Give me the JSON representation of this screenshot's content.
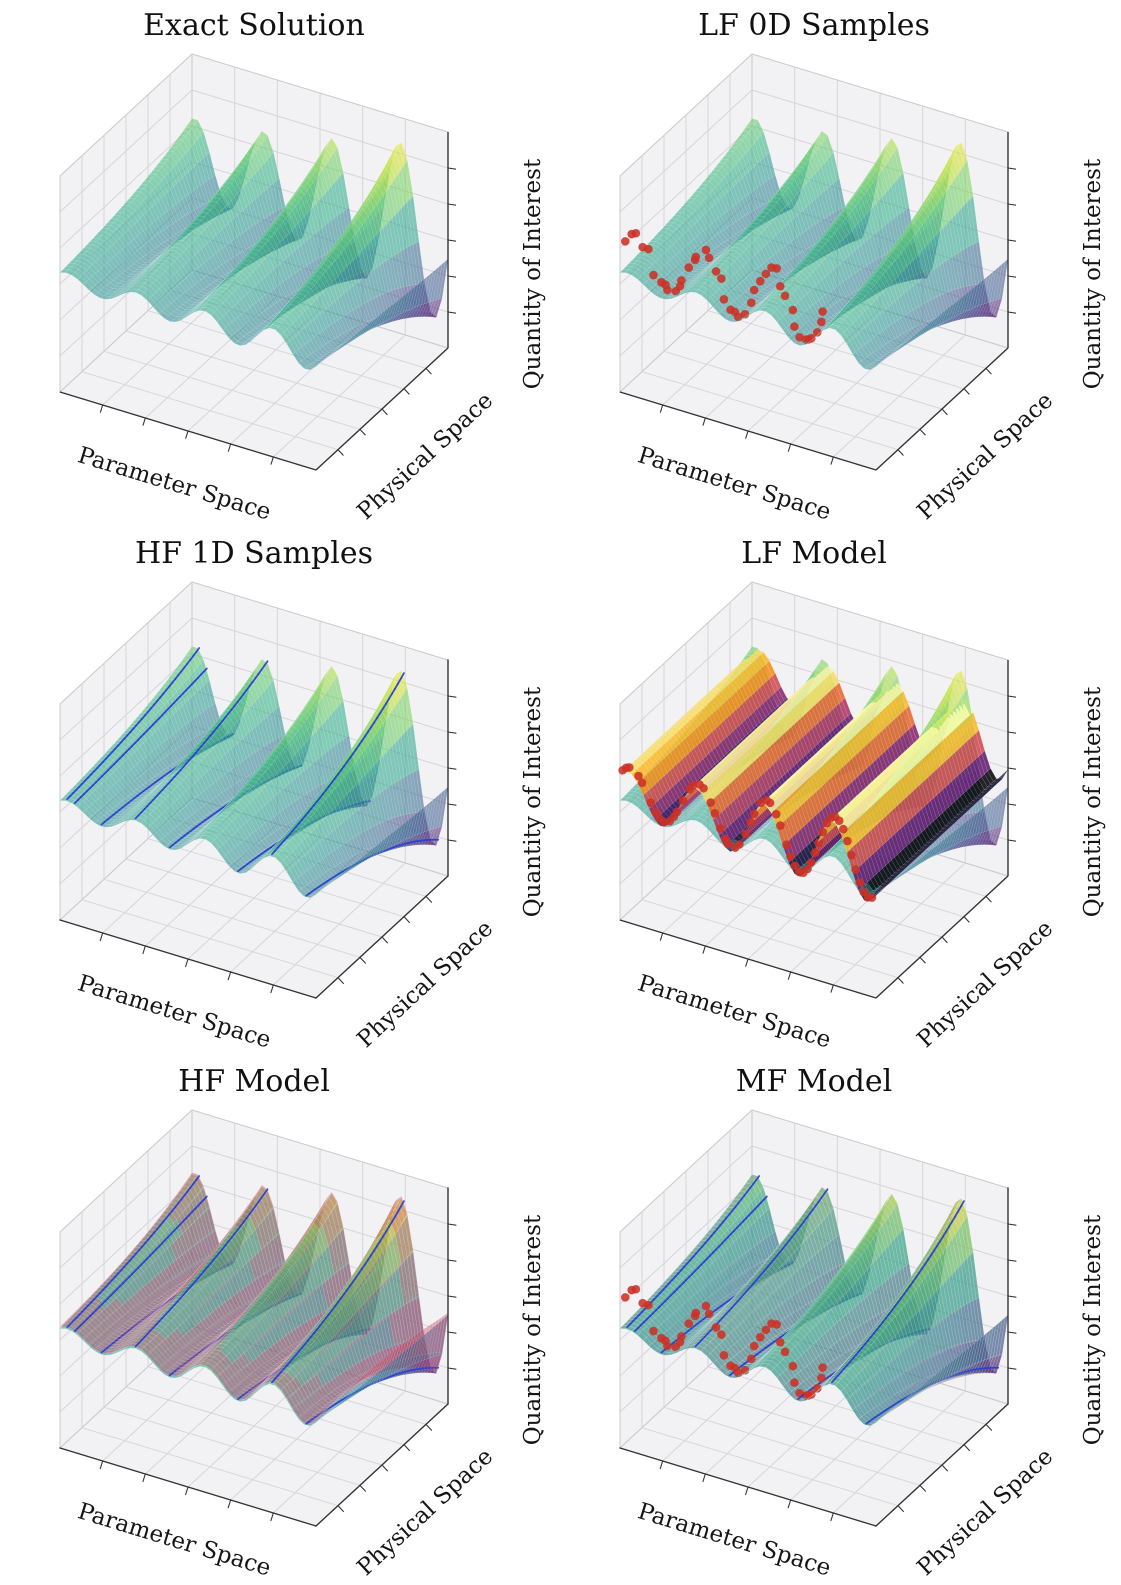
{
  "chart_data": {
    "type": "3d-surface",
    "grid": {
      "rows": 3,
      "cols": 2
    },
    "xlabel": "Parameter Space",
    "ylabel": "Physical Space",
    "zlabel": "Quantity of Interest",
    "x_range": [
      0,
      1
    ],
    "y_range": [
      0,
      1
    ],
    "z_range": [
      -2.9,
      2.6
    ],
    "ticks_per_axis": 5,
    "tick_labels_visible": false,
    "subplots": [
      {
        "title": "Exact Solution",
        "layers": [
          "exact_surface"
        ]
      },
      {
        "title": "LF 0D Samples",
        "layers": [
          "exact_surface",
          "lf_point_samples"
        ]
      },
      {
        "title": "HF 1D Samples",
        "layers": [
          "exact_surface",
          "hf_line_samples"
        ]
      },
      {
        "title": "LF Model",
        "layers": [
          "exact_surface",
          "lf_surface",
          "lf_edge_points"
        ]
      },
      {
        "title": "HF Model",
        "layers": [
          "exact_surface",
          "hf_surface",
          "hf_line_samples"
        ]
      },
      {
        "title": "MF Model",
        "layers": [
          "exact_surface",
          "mf_surface",
          "hf_line_samples",
          "lf_point_samples"
        ]
      }
    ],
    "exact_surface": {
      "formula": "z = sin(2pi*f*p + phi + k*s) * (a0 + a1*p^e) * exp(r*(s-m)) * c",
      "f": 3.75,
      "phi": 0.9,
      "k": 0.4,
      "a0": 0.42,
      "a1": 0.58,
      "e": 1.5,
      "r": 1.7,
      "m": 0.55,
      "c": 1.1,
      "colormap": "viridis",
      "alpha": 0.55
    },
    "lf_surface": {
      "formula": "z = sin(2pi*f*p + phi) * (b0 + b1*p) * c + d  (constant along physical space)",
      "f": 3.75,
      "phi": 0.9,
      "b0": 0.5,
      "b1": 0.4,
      "c": 1.05,
      "d": 0.4,
      "colormap": "inferno",
      "alpha": 0.85,
      "bands": 13
    },
    "hf_surface": {
      "formula": "z = exact + a*sin(pi*s)*cos(2pi*f*p + phi)*(0.35 + 0.65*p) + o",
      "a": 0.22,
      "f": 3.75,
      "phi": 2.0,
      "o": 0.05,
      "color": "#c23a55",
      "alpha": 0.4
    },
    "mf_surface": {
      "formula": "z = exact + a*sin(pi*s)*cos(2pi*f*p + phi)",
      "a": 0.06,
      "f": 2.5,
      "phi": 1.2,
      "color": "#68707e",
      "alpha": 0.3
    },
    "lf_point_samples": {
      "description": "LF 0D sample points along parameter space at fixed physical location",
      "s0": 0.04,
      "color": "#cc3125",
      "p": [
        0.0,
        0.014,
        0.026,
        0.062,
        0.076,
        0.11,
        0.128,
        0.142,
        0.16,
        0.184,
        0.2,
        0.212,
        0.236,
        0.262,
        0.274,
        0.3,
        0.316,
        0.344,
        0.36,
        0.382,
        0.4,
        0.412,
        0.44,
        0.456,
        0.48,
        0.5,
        0.514,
        0.54,
        0.562,
        0.576,
        0.6,
        0.616,
        0.64,
        0.656,
        0.672,
        0.69,
        0.706,
        0.722,
        0.736,
        0.752,
        0.766
      ]
    },
    "lf_edge_extra_p": [
      0.782,
      0.798,
      0.814,
      0.83,
      0.846,
      0.862,
      0.878,
      0.894,
      0.91,
      0.926,
      0.942,
      0.958,
      0.974
    ],
    "hf_line_samples": {
      "description": "HF 1D sample lines along physical space at fixed parameter values",
      "color": "#2b3fd0",
      "p": [
        0.028,
        0.058,
        0.162,
        0.295,
        0.428,
        0.695,
        0.828,
        0.962
      ]
    },
    "style": {
      "background": "#ffffff",
      "pane_color": "#f2f2f4",
      "grid_color": "#d6d6da",
      "pane_edge_color": "#c9c9cd",
      "spine_color": "#333333",
      "text_color": "#151515",
      "mesh_color": "rgba(255,255,255,0.25)"
    }
  }
}
